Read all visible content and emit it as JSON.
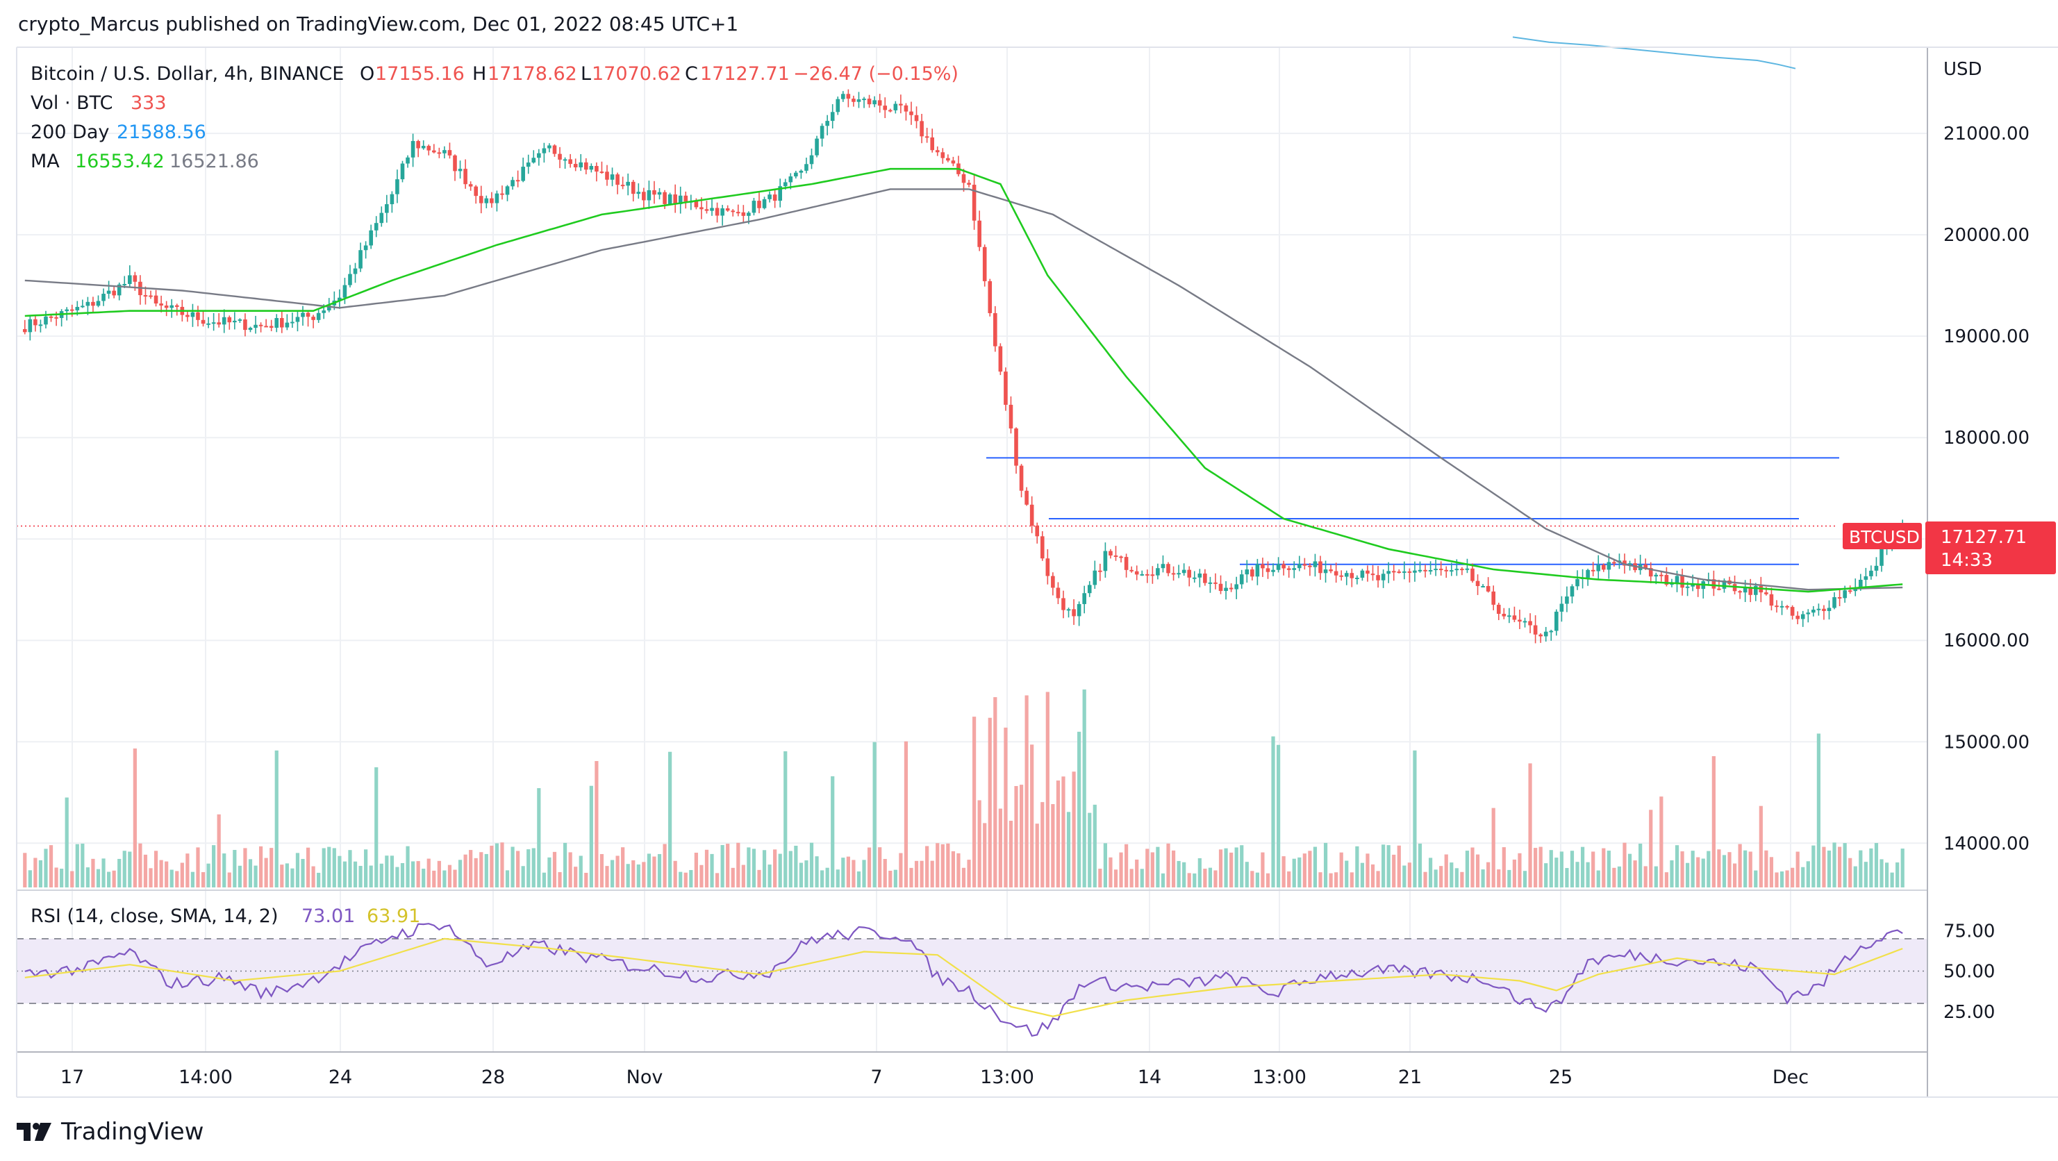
{
  "header": {
    "published": "crypto_Marcus published on TradingView.com, Dec 01, 2022 08:45 UTC+1"
  },
  "legend": {
    "symbol": "Bitcoin / U.S. Dollar, 4h, BINANCE",
    "o_label": "O",
    "o_value": "17155.16",
    "h_label": "H",
    "h_value": "17178.62",
    "l_label": "L",
    "l_value": "17070.62",
    "c_label": "C",
    "c_value": "17127.71",
    "change": "−26.47 (−0.15%)",
    "vol_label": "Vol · BTC",
    "vol_value": "333",
    "day200_label": "200 Day",
    "day200_value": "21588.56",
    "ma_label": "MA",
    "ma_value1": "16553.42",
    "ma_value2": "16521.86",
    "rsi_label": "RSI (14, close, SMA, 14, 2)",
    "rsi_value1": "73.01",
    "rsi_value2": "63.91"
  },
  "price_tag": {
    "symbol": "BTCUSD",
    "price": "17127.71",
    "countdown": "14:33"
  },
  "axis_currency": "USD",
  "footer": {
    "brand": "TradingView"
  },
  "colors": {
    "up": "#26a69a",
    "down": "#ef5350",
    "up_vol": "#8fd4c6",
    "down_vol": "#f4a6a4",
    "ma_green": "#1fcb1f",
    "ma_gray": "#787b86",
    "day200": "#5db6e1",
    "rsi": "#7e57c2",
    "rsi_sma": "#f1e04a",
    "hline": "#2962ff",
    "tag_bg": "#f23645"
  },
  "chart_data": {
    "type": "candlestick",
    "title": "Bitcoin / U.S. Dollar, 4h, BINANCE",
    "ylabel": "USD",
    "ylim": [
      13550,
      21850
    ],
    "yticks": [
      14000,
      15000,
      16000,
      17000,
      18000,
      19000,
      20000,
      21000
    ],
    "xticks": [
      "17",
      "14:00",
      "24",
      "28",
      "Nov",
      "7",
      "13:00",
      "14",
      "13:00",
      "21",
      "25",
      "Dec"
    ],
    "last_price": 17127.71,
    "horizontal_levels": [
      17800,
      17200,
      16750
    ],
    "day200_segment": [
      [
        0,
        21950
      ],
      [
        40,
        21750
      ],
      [
        80,
        21600
      ]
    ],
    "ohlc_keypoints": [
      [
        0,
        19100
      ],
      [
        12,
        19300
      ],
      [
        20,
        19550
      ],
      [
        25,
        19300
      ],
      [
        35,
        19150
      ],
      [
        45,
        19100
      ],
      [
        55,
        19200
      ],
      [
        60,
        19400
      ],
      [
        70,
        20400
      ],
      [
        74,
        20900
      ],
      [
        80,
        20800
      ],
      [
        88,
        20300
      ],
      [
        100,
        20850
      ],
      [
        108,
        20650
      ],
      [
        118,
        20400
      ],
      [
        128,
        20300
      ],
      [
        135,
        20200
      ],
      [
        142,
        20350
      ],
      [
        148,
        20600
      ],
      [
        155,
        21350
      ],
      [
        162,
        21300
      ],
      [
        168,
        21200
      ],
      [
        175,
        20750
      ],
      [
        180,
        20500
      ],
      [
        185,
        18900
      ],
      [
        190,
        17500
      ],
      [
        196,
        16500
      ],
      [
        200,
        16200
      ],
      [
        206,
        16850
      ],
      [
        212,
        16700
      ],
      [
        220,
        16700
      ],
      [
        228,
        16500
      ],
      [
        235,
        16700
      ],
      [
        240,
        16750
      ],
      [
        250,
        16700
      ],
      [
        258,
        16600
      ],
      [
        265,
        16700
      ],
      [
        275,
        16650
      ],
      [
        283,
        16200
      ],
      [
        290,
        16050
      ],
      [
        296,
        16600
      ],
      [
        304,
        16800
      ],
      [
        312,
        16600
      ],
      [
        322,
        16550
      ],
      [
        330,
        16500
      ],
      [
        338,
        16200
      ],
      [
        342,
        16300
      ],
      [
        346,
        16450
      ],
      [
        352,
        16650
      ],
      [
        355,
        17000
      ],
      [
        358,
        17127.71
      ]
    ],
    "ma_green_keypoints": [
      [
        0,
        19200
      ],
      [
        20,
        19250
      ],
      [
        40,
        19250
      ],
      [
        55,
        19250
      ],
      [
        70,
        19550
      ],
      [
        90,
        19900
      ],
      [
        110,
        20200
      ],
      [
        130,
        20350
      ],
      [
        150,
        20500
      ],
      [
        165,
        20650
      ],
      [
        178,
        20650
      ],
      [
        186,
        20500
      ],
      [
        195,
        19600
      ],
      [
        210,
        18600
      ],
      [
        225,
        17700
      ],
      [
        240,
        17200
      ],
      [
        260,
        16900
      ],
      [
        280,
        16700
      ],
      [
        300,
        16600
      ],
      [
        320,
        16550
      ],
      [
        340,
        16480
      ],
      [
        358,
        16553.42
      ]
    ],
    "ma_gray_keypoints": [
      [
        0,
        19550
      ],
      [
        30,
        19450
      ],
      [
        60,
        19280
      ],
      [
        80,
        19400
      ],
      [
        110,
        19850
      ],
      [
        140,
        20150
      ],
      [
        165,
        20450
      ],
      [
        180,
        20450
      ],
      [
        196,
        20200
      ],
      [
        220,
        19500
      ],
      [
        245,
        18700
      ],
      [
        270,
        17800
      ],
      [
        290,
        17100
      ],
      [
        305,
        16750
      ],
      [
        320,
        16600
      ],
      [
        340,
        16500
      ],
      [
        358,
        16521.86
      ]
    ],
    "rsi_ylim": [
      0,
      100
    ],
    "rsi_ticks": [
      25,
      50,
      75
    ],
    "rsi_bands": [
      30,
      50,
      70
    ],
    "rsi_keypoints": [
      [
        0,
        48
      ],
      [
        12,
        52
      ],
      [
        20,
        62
      ],
      [
        28,
        42
      ],
      [
        38,
        46
      ],
      [
        46,
        36
      ],
      [
        55,
        45
      ],
      [
        62,
        58
      ],
      [
        70,
        72
      ],
      [
        80,
        80
      ],
      [
        88,
        54
      ],
      [
        98,
        66
      ],
      [
        108,
        58
      ],
      [
        118,
        52
      ],
      [
        130,
        46
      ],
      [
        142,
        50
      ],
      [
        150,
        70
      ],
      [
        160,
        74
      ],
      [
        168,
        72
      ],
      [
        174,
        46
      ],
      [
        180,
        38
      ],
      [
        186,
        22
      ],
      [
        192,
        12
      ],
      [
        196,
        18
      ],
      [
        202,
        44
      ],
      [
        212,
        40
      ],
      [
        220,
        42
      ],
      [
        230,
        46
      ],
      [
        238,
        36
      ],
      [
        248,
        48
      ],
      [
        260,
        50
      ],
      [
        270,
        48
      ],
      [
        280,
        44
      ],
      [
        286,
        30
      ],
      [
        292,
        28
      ],
      [
        298,
        56
      ],
      [
        306,
        60
      ],
      [
        312,
        58
      ],
      [
        320,
        56
      ],
      [
        330,
        52
      ],
      [
        336,
        34
      ],
      [
        342,
        40
      ],
      [
        346,
        54
      ],
      [
        350,
        66
      ],
      [
        356,
        74
      ],
      [
        358,
        73.01
      ]
    ],
    "rsi_sma_keypoints": [
      [
        0,
        46
      ],
      [
        20,
        54
      ],
      [
        40,
        44
      ],
      [
        60,
        50
      ],
      [
        80,
        70
      ],
      [
        100,
        64
      ],
      [
        120,
        56
      ],
      [
        140,
        48
      ],
      [
        160,
        62
      ],
      [
        174,
        60
      ],
      [
        188,
        28
      ],
      [
        196,
        22
      ],
      [
        210,
        32
      ],
      [
        230,
        40
      ],
      [
        250,
        44
      ],
      [
        270,
        48
      ],
      [
        285,
        44
      ],
      [
        292,
        38
      ],
      [
        300,
        48
      ],
      [
        315,
        58
      ],
      [
        330,
        52
      ],
      [
        345,
        48
      ],
      [
        358,
        63.91
      ]
    ]
  }
}
